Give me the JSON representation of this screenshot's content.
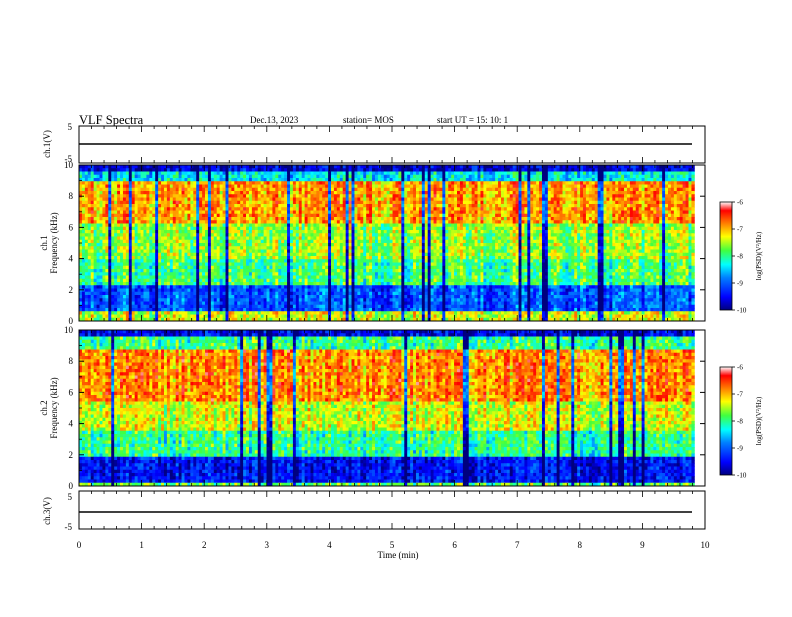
{
  "header": {
    "title": "VLF Spectra",
    "date": "Dec.13, 2023",
    "station": "station= MOS",
    "start": "start  UT =   15: 10: 1"
  },
  "colors": {
    "background": "#ffffff",
    "axis": "#000000",
    "colormap": [
      "#00007f",
      "#0000ff",
      "#0080ff",
      "#00ffff",
      "#40ff40",
      "#ffff00",
      "#ff8000",
      "#ff0000",
      "#ffffff"
    ]
  },
  "chart_data": [
    {
      "type": "line",
      "panel": "ch1-waveform",
      "ylabel": "ch.1(V)",
      "ylim": [
        -5,
        5
      ],
      "yticks": [
        "5",
        "-5"
      ],
      "x": [
        0,
        10
      ],
      "values": [
        0,
        0
      ],
      "xlim": [
        0,
        10
      ]
    },
    {
      "type": "heatmap",
      "panel": "ch1-spectrogram",
      "ylabel_line1": "ch.1",
      "ylabel_line2": "Frequency (kHz)",
      "ylim": [
        0,
        10
      ],
      "yticks": [
        "0",
        "2",
        "4",
        "6",
        "8",
        "10"
      ],
      "xlim": [
        0,
        10
      ],
      "data_end_min": 9.83,
      "colorbar": {
        "label": "log(PSD)(V²/Hz)",
        "range": [
          -10,
          -6
        ],
        "ticks": [
          "-6",
          "-7",
          "-8",
          "-9",
          "-10"
        ]
      }
    },
    {
      "type": "heatmap",
      "panel": "ch2-spectrogram",
      "ylabel_line1": "ch.2",
      "ylabel_line2": "Frequency (kHz)",
      "ylim": [
        0,
        10
      ],
      "yticks": [
        "0",
        "2",
        "4",
        "6",
        "8",
        "10"
      ],
      "xlim": [
        0,
        10
      ],
      "data_end_min": 9.83,
      "colorbar": {
        "label": "log(PSD)(V²/Hz)",
        "range": [
          -10,
          -6
        ],
        "ticks": [
          "-6",
          "-7",
          "-8",
          "-9",
          "-10"
        ]
      }
    },
    {
      "type": "line",
      "panel": "ch3-waveform",
      "ylabel": "ch.3(V)",
      "ylim": [
        -5,
        5
      ],
      "yticks": [
        "5",
        "-5"
      ],
      "x": [
        0,
        10
      ],
      "values": [
        0,
        0
      ],
      "xlim": [
        0,
        10
      ]
    }
  ],
  "xaxis": {
    "label": "Time (min)",
    "ticks": [
      "0",
      "1",
      "2",
      "3",
      "4",
      "5",
      "6",
      "7",
      "8",
      "9",
      "10"
    ],
    "range": [
      0,
      10
    ]
  }
}
